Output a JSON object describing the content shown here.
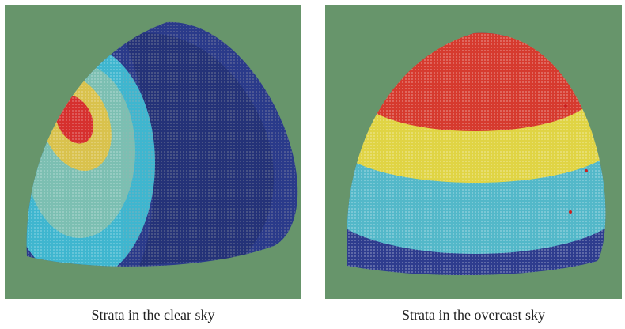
{
  "figure": {
    "background_color": "#67956b",
    "left": {
      "caption": "Strata in the clear sky",
      "colors": {
        "hot": "#d6302e",
        "warm": "#d9c24d",
        "mid": "#7cbfb2",
        "cool": "#3fb6cf",
        "cold": "#2a3a8a",
        "shadow": "#1f2c6a"
      }
    },
    "right": {
      "caption": "Strata in the overcast sky",
      "colors": {
        "top": "#d63a2e",
        "upper": "#e0d444",
        "middle": "#53b8c9",
        "lower": "#2e3c8e",
        "dots": "#cc2222"
      }
    }
  }
}
